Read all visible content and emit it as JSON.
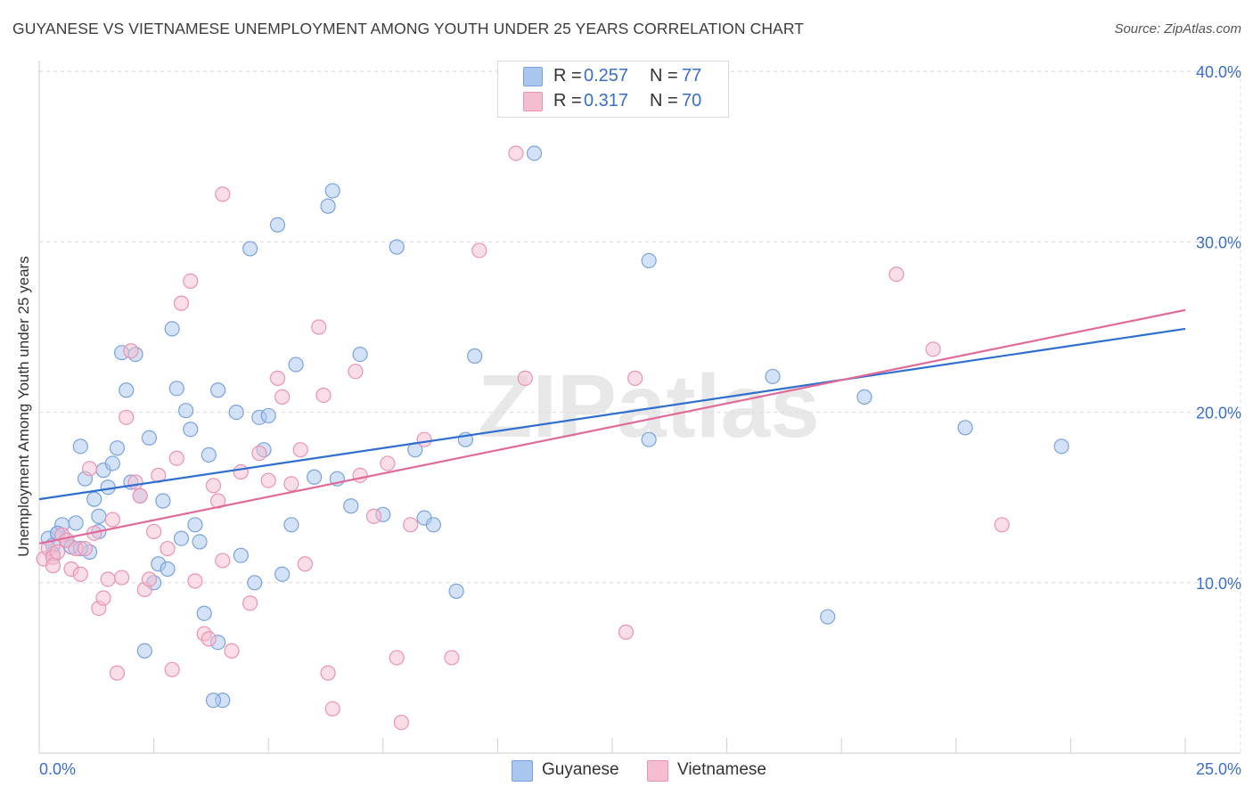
{
  "title": "GUYANESE VS VIETNAMESE UNEMPLOYMENT AMONG YOUTH UNDER 25 YEARS CORRELATION CHART",
  "source": "Source: ZipAtlas.com",
  "watermark": "ZIPatlas",
  "legend_top": {
    "rows": [
      {
        "r_label": "R =",
        "r_value": "0.257",
        "n_label": "N =",
        "n_value": "77"
      },
      {
        "r_label": "R =",
        "r_value": "0.317",
        "n_label": "N =",
        "n_value": "70"
      }
    ]
  },
  "colors": {
    "guyanese_fill": "#a9c6ef",
    "guyanese_stroke": "#7aa3dc",
    "guyanese_line": "#2f6fcf",
    "vietnamese_fill": "#f5bdd0",
    "vietnamese_stroke": "#eb93b2",
    "vietnamese_line": "#e06b98",
    "tick_label": "#3a6fc9",
    "grid": "#dcdcdc"
  },
  "chart_data": {
    "type": "scatter",
    "title": "GUYANESE VS VIETNAMESE UNEMPLOYMENT AMONG YOUTH UNDER 25 YEARS CORRELATION CHART",
    "xlabel": "",
    "ylabel": "Unemployment Among Youth under 25 years",
    "xlim": [
      0,
      25
    ],
    "ylim": [
      0,
      40
    ],
    "x_tick_labels": [
      "0.0%",
      "25.0%"
    ],
    "y_ticks": [
      10,
      20,
      30,
      40
    ],
    "y_tick_labels": [
      "10.0%",
      "20.0%",
      "30.0%",
      "40.0%"
    ],
    "grid": true,
    "legend_position": "bottom",
    "series": [
      {
        "name": "Guyanese",
        "r": 0.257,
        "n": 77,
        "trend": [
          [
            0,
            14.9
          ],
          [
            25,
            24.9
          ]
        ],
        "points": [
          [
            0.2,
            12.6
          ],
          [
            0.3,
            12.2
          ],
          [
            0.4,
            12.9
          ],
          [
            0.5,
            13.4
          ],
          [
            0.6,
            12.5
          ],
          [
            0.7,
            12.1
          ],
          [
            0.8,
            13.5
          ],
          [
            0.9,
            18.0
          ],
          [
            1.0,
            16.1
          ],
          [
            1.1,
            11.8
          ],
          [
            1.2,
            14.9
          ],
          [
            1.3,
            13.9
          ],
          [
            1.4,
            16.6
          ],
          [
            1.5,
            15.6
          ],
          [
            1.6,
            17.0
          ],
          [
            1.7,
            17.9
          ],
          [
            1.8,
            23.5
          ],
          [
            1.9,
            21.3
          ],
          [
            2.0,
            15.9
          ],
          [
            2.1,
            23.4
          ],
          [
            2.2,
            15.1
          ],
          [
            2.4,
            18.5
          ],
          [
            2.5,
            10.0
          ],
          [
            2.6,
            11.1
          ],
          [
            2.7,
            14.8
          ],
          [
            2.8,
            10.8
          ],
          [
            2.9,
            24.9
          ],
          [
            3.0,
            21.4
          ],
          [
            3.1,
            12.6
          ],
          [
            3.2,
            20.1
          ],
          [
            3.3,
            19.0
          ],
          [
            3.4,
            13.4
          ],
          [
            3.5,
            12.4
          ],
          [
            3.6,
            8.2
          ],
          [
            3.7,
            17.5
          ],
          [
            3.9,
            21.3
          ],
          [
            4.3,
            20.0
          ],
          [
            4.4,
            11.6
          ],
          [
            4.6,
            29.6
          ],
          [
            4.7,
            10.0
          ],
          [
            4.8,
            19.7
          ],
          [
            4.9,
            17.8
          ],
          [
            5.0,
            19.8
          ],
          [
            5.2,
            31.0
          ],
          [
            5.3,
            10.5
          ],
          [
            5.5,
            13.4
          ],
          [
            5.6,
            22.8
          ],
          [
            6.0,
            16.2
          ],
          [
            6.3,
            32.1
          ],
          [
            6.5,
            16.1
          ],
          [
            6.8,
            14.5
          ],
          [
            7.0,
            23.4
          ],
          [
            7.5,
            14.0
          ],
          [
            7.8,
            29.7
          ],
          [
            8.2,
            17.8
          ],
          [
            8.4,
            13.8
          ],
          [
            8.6,
            13.4
          ],
          [
            9.1,
            9.5
          ],
          [
            9.3,
            18.4
          ],
          [
            9.5,
            23.3
          ],
          [
            1.3,
            13.0
          ],
          [
            0.9,
            12.0
          ],
          [
            4.0,
            3.1
          ],
          [
            3.8,
            3.1
          ],
          [
            2.3,
            6.0
          ],
          [
            3.9,
            6.5
          ],
          [
            6.4,
            33.0
          ],
          [
            13.3,
            28.9
          ],
          [
            13.3,
            18.4
          ],
          [
            16.0,
            22.1
          ],
          [
            18.0,
            20.9
          ],
          [
            20.2,
            19.1
          ],
          [
            22.3,
            18.0
          ],
          [
            17.2,
            8.0
          ],
          [
            10.8,
            35.2
          ],
          [
            0.4,
            12.9
          ],
          [
            0.3,
            11.7
          ]
        ]
      },
      {
        "name": "Vietnamese",
        "r": 0.317,
        "n": 70,
        "trend": [
          [
            0,
            12.3
          ],
          [
            25,
            26.0
          ]
        ],
        "points": [
          [
            0.1,
            11.4
          ],
          [
            0.2,
            12.0
          ],
          [
            0.3,
            11.5
          ],
          [
            0.4,
            11.8
          ],
          [
            0.5,
            12.8
          ],
          [
            0.6,
            12.5
          ],
          [
            0.7,
            10.8
          ],
          [
            0.8,
            12.0
          ],
          [
            0.9,
            10.5
          ],
          [
            1.0,
            12.0
          ],
          [
            1.1,
            16.7
          ],
          [
            1.2,
            12.9
          ],
          [
            1.3,
            8.5
          ],
          [
            1.4,
            9.1
          ],
          [
            1.5,
            10.2
          ],
          [
            1.6,
            13.7
          ],
          [
            1.7,
            4.7
          ],
          [
            1.8,
            10.3
          ],
          [
            1.9,
            19.7
          ],
          [
            2.0,
            23.6
          ],
          [
            2.1,
            15.9
          ],
          [
            2.2,
            15.1
          ],
          [
            2.3,
            9.6
          ],
          [
            2.4,
            10.2
          ],
          [
            2.5,
            13.0
          ],
          [
            2.6,
            16.3
          ],
          [
            2.8,
            12.0
          ],
          [
            2.9,
            4.9
          ],
          [
            3.0,
            17.3
          ],
          [
            3.1,
            26.4
          ],
          [
            3.3,
            27.7
          ],
          [
            3.4,
            10.1
          ],
          [
            3.6,
            7.0
          ],
          [
            3.7,
            6.7
          ],
          [
            3.8,
            15.7
          ],
          [
            3.9,
            14.8
          ],
          [
            4.0,
            11.3
          ],
          [
            4.2,
            6.0
          ],
          [
            4.4,
            16.5
          ],
          [
            4.6,
            8.8
          ],
          [
            4.8,
            17.6
          ],
          [
            5.0,
            16.0
          ],
          [
            5.2,
            22.0
          ],
          [
            5.3,
            20.9
          ],
          [
            5.5,
            15.8
          ],
          [
            5.7,
            17.8
          ],
          [
            5.8,
            11.1
          ],
          [
            6.1,
            25.0
          ],
          [
            6.2,
            21.0
          ],
          [
            6.3,
            4.7
          ],
          [
            6.4,
            2.6
          ],
          [
            6.9,
            22.4
          ],
          [
            7.0,
            16.3
          ],
          [
            7.3,
            13.9
          ],
          [
            7.6,
            17.0
          ],
          [
            7.8,
            5.6
          ],
          [
            8.1,
            13.4
          ],
          [
            8.4,
            18.4
          ],
          [
            9.0,
            5.6
          ],
          [
            10.4,
            35.2
          ],
          [
            10.6,
            22.0
          ],
          [
            12.8,
            7.1
          ],
          [
            13.0,
            22.0
          ],
          [
            18.7,
            28.1
          ],
          [
            19.5,
            23.7
          ],
          [
            21.0,
            13.4
          ],
          [
            7.9,
            1.8
          ],
          [
            4.0,
            32.8
          ],
          [
            9.6,
            29.5
          ],
          [
            0.3,
            11.0
          ]
        ]
      }
    ]
  },
  "legend_bottom": {
    "items": [
      "Guyanese",
      "Vietnamese"
    ]
  }
}
